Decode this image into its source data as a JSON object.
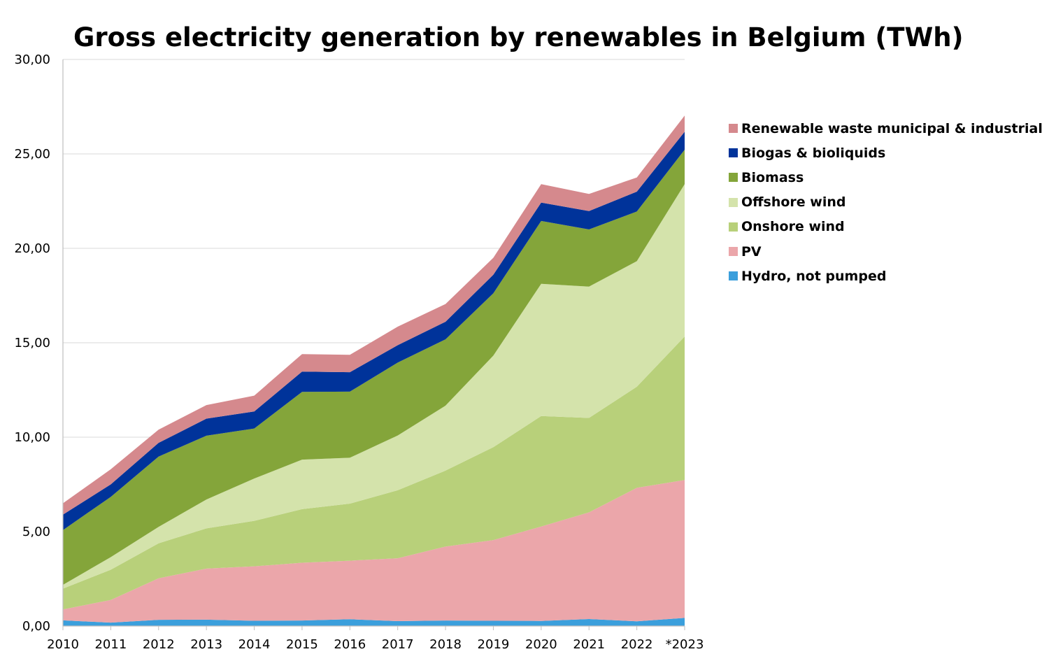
{
  "chart_data": {
    "type": "area",
    "stacked": true,
    "title": "Gross electricity generation by renewables in Belgium (TWh)",
    "xlabel": "",
    "ylabel": "",
    "categories": [
      "2010",
      "2011",
      "2012",
      "2013",
      "2014",
      "2015",
      "2016",
      "2017",
      "2018",
      "2019",
      "2020",
      "2021",
      "2022",
      "*2023"
    ],
    "y_ticks": [
      "0,00",
      "5,00",
      "10,00",
      "15,00",
      "20,00",
      "25,00",
      "30,00"
    ],
    "ylim": [
      0,
      30
    ],
    "grid": true,
    "legend_position": "right",
    "series": [
      {
        "name": "Hydro, not pumped",
        "color": "#3b9fdc",
        "values": [
          0.3,
          0.18,
          0.33,
          0.34,
          0.28,
          0.29,
          0.36,
          0.26,
          0.29,
          0.28,
          0.27,
          0.37,
          0.25,
          0.43
        ]
      },
      {
        "name": "PV",
        "color": "#eba6aa",
        "values": [
          0.58,
          1.2,
          2.2,
          2.7,
          2.88,
          3.06,
          3.1,
          3.33,
          3.92,
          4.27,
          5.0,
          5.65,
          7.07,
          7.3
        ]
      },
      {
        "name": "Onshore wind",
        "color": "#b8d07a",
        "values": [
          1.1,
          1.6,
          1.85,
          2.13,
          2.41,
          2.84,
          3.02,
          3.6,
          4.02,
          4.92,
          5.85,
          5.0,
          5.35,
          7.6
        ]
      },
      {
        "name": "Offshore wind",
        "color": "#d4e3ab",
        "values": [
          0.2,
          0.67,
          0.87,
          1.53,
          2.24,
          2.62,
          2.43,
          2.9,
          3.44,
          4.85,
          7.0,
          6.95,
          6.65,
          8.07
        ]
      },
      {
        "name": "Biomass",
        "color": "#84a53a",
        "values": [
          2.9,
          3.19,
          3.72,
          3.38,
          2.65,
          3.59,
          3.5,
          3.86,
          3.51,
          3.3,
          3.33,
          3.03,
          2.63,
          1.82
        ]
      },
      {
        "name": "Biogas & bioliquids",
        "color": "#00339a",
        "values": [
          0.82,
          0.66,
          0.73,
          0.9,
          0.9,
          1.07,
          1.03,
          0.92,
          0.93,
          0.98,
          0.97,
          0.97,
          1.05,
          0.95
        ]
      },
      {
        "name": "Renewable waste municipal & industrial",
        "color": "#d5898d",
        "values": [
          0.6,
          0.8,
          0.7,
          0.72,
          0.84,
          0.93,
          0.92,
          0.98,
          0.94,
          0.9,
          0.98,
          0.91,
          0.75,
          0.86
        ]
      }
    ]
  }
}
